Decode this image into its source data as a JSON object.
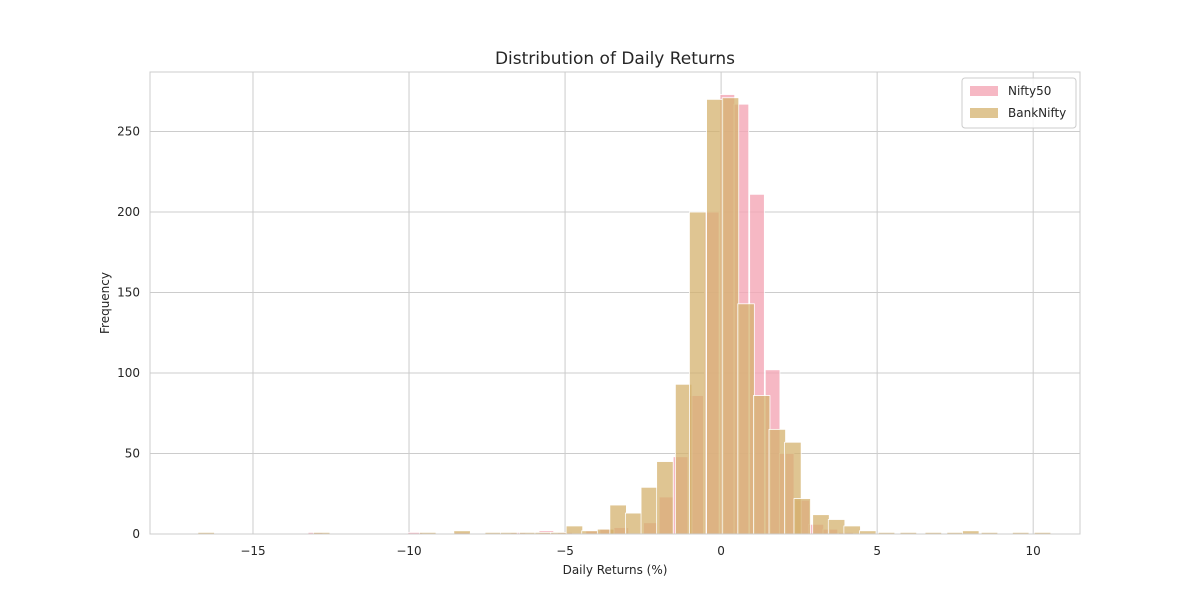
{
  "chart_data": {
    "type": "bar",
    "title": "Distribution of Daily Returns",
    "xlabel": "Daily Returns (%)",
    "ylabel": "Frequency",
    "xlim": [
      -18.3,
      11.5
    ],
    "ylim": [
      0,
      287
    ],
    "xticks": [
      -15,
      -10,
      -5,
      0,
      5,
      10
    ],
    "xtick_labels": [
      "−15",
      "−10",
      "−5",
      "0",
      "5",
      "10"
    ],
    "yticks": [
      0,
      50,
      100,
      150,
      200,
      250
    ],
    "grid": true,
    "legend_position": "top-right",
    "series": [
      {
        "name": "Nifty50",
        "color": "#f4a6b5",
        "opacity": 0.8,
        "bin_width": 0.47,
        "bins": [
          [
            -13.0,
            1
          ],
          [
            -9.8,
            1
          ],
          [
            -8.3,
            1
          ],
          [
            -6.5,
            1
          ],
          [
            -5.6,
            2
          ],
          [
            -5.0,
            1
          ],
          [
            -4.1,
            2
          ],
          [
            -3.65,
            3
          ],
          [
            -3.2,
            4
          ],
          [
            -2.25,
            7
          ],
          [
            -1.75,
            23
          ],
          [
            -1.3,
            48
          ],
          [
            -0.8,
            86
          ],
          [
            -0.3,
            200
          ],
          [
            0.2,
            273
          ],
          [
            0.65,
            267
          ],
          [
            1.15,
            211
          ],
          [
            1.65,
            102
          ],
          [
            2.1,
            50
          ],
          [
            2.6,
            21
          ],
          [
            3.05,
            6
          ],
          [
            3.5,
            3
          ],
          [
            4.0,
            1
          ]
        ]
      },
      {
        "name": "BankNifty",
        "color": "#d4b26e",
        "opacity": 0.75,
        "bin_width": 0.53,
        "bins": [
          [
            -16.5,
            1
          ],
          [
            -12.8,
            1
          ],
          [
            -9.4,
            1
          ],
          [
            -8.3,
            2
          ],
          [
            -7.3,
            1
          ],
          [
            -6.8,
            1
          ],
          [
            -6.2,
            1
          ],
          [
            -5.7,
            1
          ],
          [
            -5.2,
            1
          ],
          [
            -4.7,
            5
          ],
          [
            -4.2,
            2
          ],
          [
            -3.7,
            3
          ],
          [
            -3.3,
            18
          ],
          [
            -2.8,
            13
          ],
          [
            -2.3,
            29
          ],
          [
            -1.8,
            45
          ],
          [
            -1.2,
            93
          ],
          [
            -0.75,
            200
          ],
          [
            -0.2,
            270
          ],
          [
            0.3,
            271
          ],
          [
            0.8,
            143
          ],
          [
            1.3,
            86
          ],
          [
            1.8,
            65
          ],
          [
            2.3,
            57
          ],
          [
            2.6,
            22
          ],
          [
            3.2,
            12
          ],
          [
            3.7,
            9
          ],
          [
            4.2,
            5
          ],
          [
            4.7,
            2
          ],
          [
            5.3,
            1
          ],
          [
            6.0,
            1
          ],
          [
            6.8,
            1
          ],
          [
            7.5,
            1
          ],
          [
            8.0,
            2
          ],
          [
            8.6,
            1
          ],
          [
            9.6,
            1
          ],
          [
            10.3,
            1
          ]
        ]
      }
    ]
  }
}
